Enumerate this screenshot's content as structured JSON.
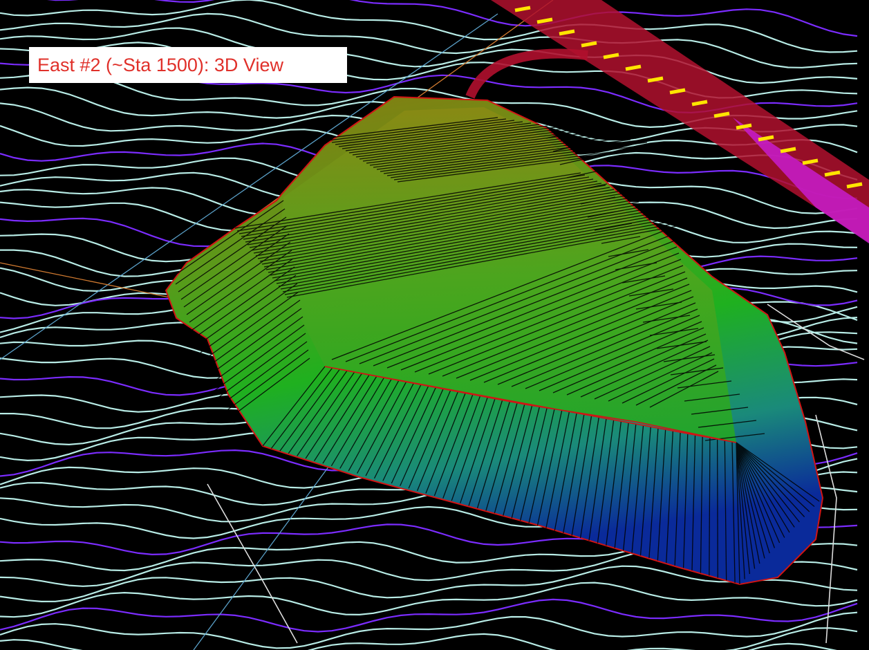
{
  "title": "East #2 (~Sta 1500): 3D View",
  "colors": {
    "background": "#000000",
    "title_text": "#e0302a",
    "title_bg": "#ffffff",
    "contour_major": "#7b2cff",
    "contour_minor": "#b8ece6",
    "contour_white": "#e6e6e6",
    "pond_fill_top": "#8a7a10",
    "pond_fill_mid": "#1fb01f",
    "pond_fill_bottom": "#0a2a8a",
    "outline": "#d11414",
    "road_red": "#d2143c",
    "road_magenta": "#c41cc4",
    "road_marks": "#ffe500",
    "grid_line": "#5aa0c8",
    "orange_line": "#d07a30"
  },
  "icons": {
    "viewport": "3d-terrain-viewport"
  }
}
